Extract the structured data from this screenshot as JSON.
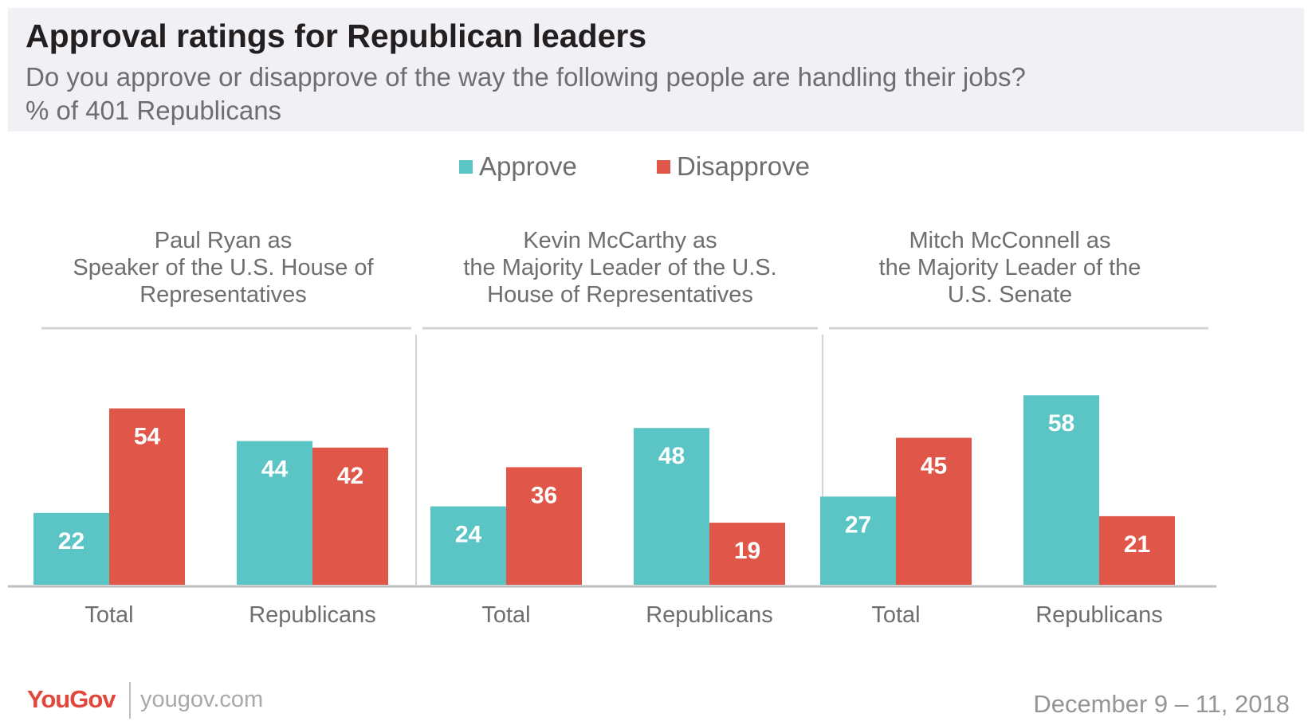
{
  "header": {
    "title": "Approval ratings for Republican leaders",
    "subtitle_line1": "Do you approve or disapprove of the way the following people are handling their jobs?",
    "subtitle_line2": "% of 401 Republicans"
  },
  "legend": {
    "approve_label": "Approve",
    "disapprove_label": "Disapprove"
  },
  "colors": {
    "approve": "#5bc4c4",
    "disapprove": "#e05649",
    "text": "#58595b",
    "rule": "#d1d3d4"
  },
  "chart_data": {
    "type": "bar",
    "series": [
      {
        "name": "Approve",
        "color": "#5bc4c4"
      },
      {
        "name": "Disapprove",
        "color": "#e05649"
      }
    ],
    "panels": [
      {
        "title_lines": [
          "Paul Ryan as",
          "Speaker of the U.S. House of",
          "Representatives"
        ],
        "categories": [
          "Total",
          "Republicans"
        ],
        "approve": [
          22,
          44
        ],
        "disapprove": [
          54,
          42
        ]
      },
      {
        "title_lines": [
          "Kevin McCarthy as",
          "the Majority Leader of the U.S.",
          "House of Representatives"
        ],
        "categories": [
          "Total",
          "Republicans"
        ],
        "approve": [
          24,
          48
        ],
        "disapprove": [
          36,
          19
        ]
      },
      {
        "title_lines": [
          "Mitch McConnell as",
          "the Majority Leader of the",
          "U.S. Senate"
        ],
        "categories": [
          "Total",
          "Republicans"
        ],
        "approve": [
          27,
          58
        ],
        "disapprove": [
          45,
          21
        ]
      }
    ],
    "ylim": [
      0,
      60
    ]
  },
  "footer": {
    "logo_you": "YouGov",
    "logo_gov": "",
    "url": "yougov.com",
    "date": "December 9 – 11, 2018"
  }
}
